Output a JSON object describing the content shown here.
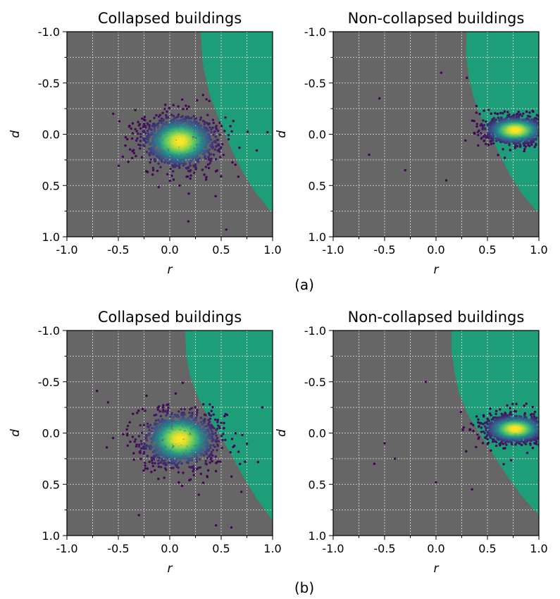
{
  "figure": {
    "captions": [
      "(a)",
      "(b)"
    ]
  },
  "colors": {
    "background_region": "#666666",
    "decision_region": "#1e9e78",
    "grid": "#c8c8c8",
    "viridis": [
      "#440154",
      "#3b528b",
      "#21918c",
      "#5ec962",
      "#fde725"
    ]
  },
  "chart_data": [
    {
      "type": "scatter",
      "panel": "(a)",
      "title": "Collapsed buildings",
      "xlabel": "r",
      "ylabel": "d",
      "xlim": [
        -1.0,
        1.0
      ],
      "ylim": [
        1.0,
        -1.0
      ],
      "y_inverted": true,
      "xticks": [
        "-1.0",
        "-0.5",
        "0.0",
        "0.5",
        "1.0"
      ],
      "yticks": [
        "-1.0",
        "-0.5",
        "0.0",
        "0.5",
        "1.0"
      ],
      "grid": true,
      "boundary": [
        [
          0.3,
          -1.0
        ],
        [
          0.32,
          -0.7
        ],
        [
          0.36,
          -0.5
        ],
        [
          0.4,
          -0.35
        ],
        [
          0.45,
          -0.22
        ],
        [
          0.52,
          -0.05
        ],
        [
          0.6,
          0.15
        ],
        [
          0.7,
          0.35
        ],
        [
          0.82,
          0.55
        ],
        [
          0.98,
          0.75
        ],
        [
          1.0,
          0.75
        ]
      ],
      "cluster": {
        "center_r": 0.1,
        "center_d": 0.07,
        "spread_r": 0.27,
        "spread_d": 0.19,
        "points": 1500
      },
      "outliers": [
        [
          -0.55,
          -0.2
        ],
        [
          0.18,
          0.85
        ],
        [
          0.55,
          0.93
        ],
        [
          0.95,
          -0.02
        ]
      ]
    },
    {
      "type": "scatter",
      "panel": "(a)",
      "title": "Non-collapsed buildings",
      "xlabel": "r",
      "ylabel": "d",
      "xlim": [
        -1.0,
        1.0
      ],
      "ylim": [
        1.0,
        -1.0
      ],
      "y_inverted": true,
      "xticks": [
        "-1.0",
        "-0.5",
        "0.0",
        "0.5",
        "1.0"
      ],
      "yticks": [
        "-1.0",
        "-0.5",
        "0.0",
        "0.5",
        "1.0"
      ],
      "grid": true,
      "boundary": [
        [
          0.3,
          -1.0
        ],
        [
          0.29,
          -0.8
        ],
        [
          0.32,
          -0.55
        ],
        [
          0.36,
          -0.38
        ],
        [
          0.42,
          -0.2
        ],
        [
          0.52,
          0.0
        ],
        [
          0.62,
          0.2
        ],
        [
          0.72,
          0.4
        ],
        [
          0.85,
          0.6
        ],
        [
          0.98,
          0.75
        ],
        [
          1.0,
          0.75
        ]
      ],
      "cluster": {
        "center_r": 0.77,
        "center_d": -0.04,
        "spread_r": 0.22,
        "spread_d": 0.1,
        "points": 1500
      },
      "outliers": [
        [
          -0.65,
          0.2
        ],
        [
          -0.55,
          -0.35
        ],
        [
          -0.3,
          0.35
        ],
        [
          0.1,
          0.45
        ],
        [
          0.3,
          -0.55
        ],
        [
          0.05,
          -0.6
        ]
      ]
    },
    {
      "type": "scatter",
      "panel": "(b)",
      "title": "Collapsed buildings",
      "xlabel": "r",
      "ylabel": "d",
      "xlim": [
        -1.0,
        1.0
      ],
      "ylim": [
        1.0,
        -1.0
      ],
      "y_inverted": true,
      "xticks": [
        "-1.0",
        "-0.5",
        "0.0",
        "0.5",
        "1.0"
      ],
      "yticks": [
        "-1.0",
        "-0.5",
        "0.0",
        "0.5",
        "1.0"
      ],
      "grid": true,
      "boundary": [
        [
          0.15,
          -1.0
        ],
        [
          0.16,
          -0.75
        ],
        [
          0.2,
          -0.55
        ],
        [
          0.26,
          -0.38
        ],
        [
          0.35,
          -0.2
        ],
        [
          0.46,
          -0.02
        ],
        [
          0.58,
          0.18
        ],
        [
          0.7,
          0.4
        ],
        [
          0.85,
          0.65
        ],
        [
          1.0,
          0.85
        ]
      ],
      "cluster": {
        "center_r": 0.1,
        "center_d": 0.06,
        "spread_r": 0.27,
        "spread_d": 0.2,
        "points": 1500
      },
      "outliers": [
        [
          -0.6,
          -0.3
        ],
        [
          -0.3,
          0.8
        ],
        [
          0.45,
          0.9
        ],
        [
          0.6,
          0.92
        ],
        [
          0.9,
          -0.25
        ]
      ]
    },
    {
      "type": "scatter",
      "panel": "(b)",
      "title": "Non-collapsed buildings",
      "xlabel": "r",
      "ylabel": "d",
      "xlim": [
        -1.0,
        1.0
      ],
      "ylim": [
        1.0,
        -1.0
      ],
      "y_inverted": true,
      "xticks": [
        "-1.0",
        "-0.5",
        "0.0",
        "0.5",
        "1.0"
      ],
      "yticks": [
        "-1.0",
        "-0.5",
        "0.0",
        "0.5",
        "1.0"
      ],
      "grid": true,
      "boundary": [
        [
          0.15,
          -1.0
        ],
        [
          0.15,
          -0.8
        ],
        [
          0.18,
          -0.6
        ],
        [
          0.22,
          -0.4
        ],
        [
          0.3,
          -0.2
        ],
        [
          0.42,
          0.0
        ],
        [
          0.55,
          0.2
        ],
        [
          0.68,
          0.4
        ],
        [
          0.82,
          0.6
        ],
        [
          1.0,
          0.8
        ]
      ],
      "cluster": {
        "center_r": 0.77,
        "center_d": -0.04,
        "spread_r": 0.22,
        "spread_d": 0.1,
        "points": 1500
      },
      "outliers": [
        [
          -0.6,
          0.3
        ],
        [
          -0.5,
          0.1
        ],
        [
          -0.4,
          0.25
        ],
        [
          -0.1,
          -0.5
        ],
        [
          0.0,
          0.48
        ],
        [
          0.35,
          0.55
        ]
      ]
    }
  ]
}
